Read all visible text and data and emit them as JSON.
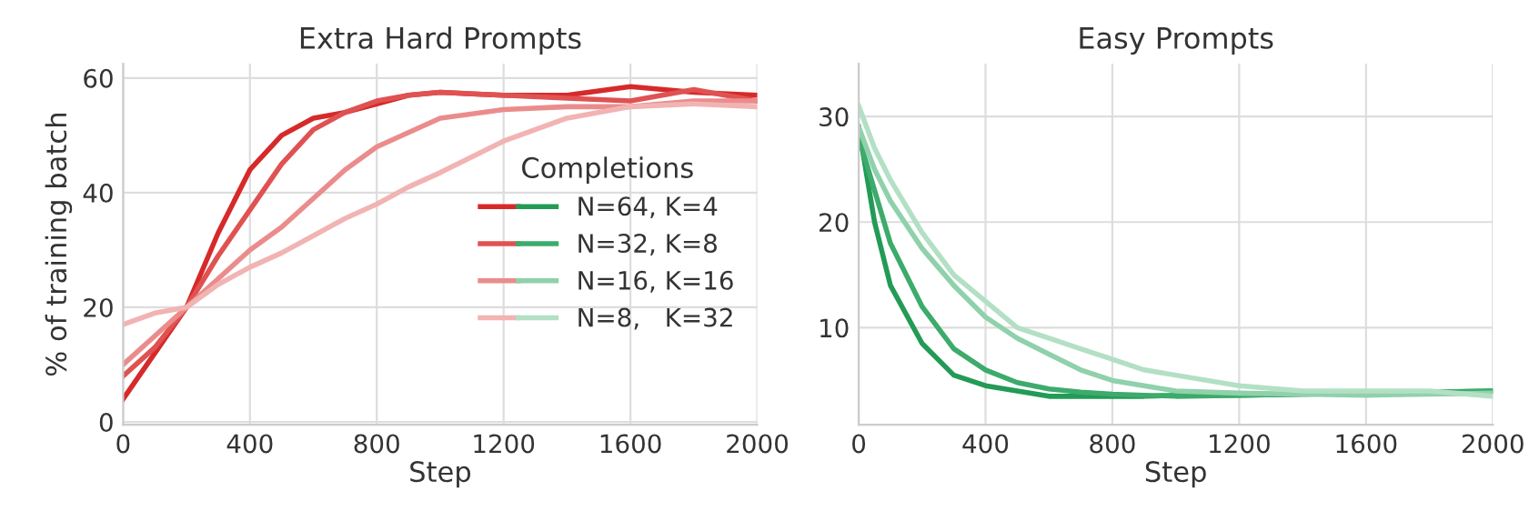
{
  "chart_data": [
    {
      "type": "line",
      "title": "Extra Hard Prompts",
      "xlabel": "Step",
      "ylabel": "% of training batch",
      "legend_title": "Completions",
      "legend": "right",
      "grid": true,
      "x": [
        0,
        100,
        200,
        300,
        400,
        500,
        600,
        700,
        800,
        900,
        1000,
        1200,
        1400,
        1600,
        1800,
        2000
      ],
      "xlim": [
        0,
        2000
      ],
      "xticks": [
        0,
        400,
        800,
        1200,
        1600,
        2000
      ],
      "ylim": [
        -0.5,
        62.5
      ],
      "yticks": [
        0,
        20,
        40,
        60
      ],
      "series": [
        {
          "name": "N=64, K=4",
          "color": "#d62a2a",
          "values": [
            4,
            12,
            20,
            33,
            44,
            50,
            53,
            54,
            55.5,
            57,
            57.5,
            57,
            57,
            58.5,
            57.5,
            57
          ]
        },
        {
          "name": "N=32, K=8",
          "color": "#e05252",
          "values": [
            8,
            13,
            20,
            29,
            37,
            45,
            51,
            54,
            56,
            57,
            57.5,
            57,
            56.5,
            56,
            58,
            56
          ]
        },
        {
          "name": "N=16, K=16",
          "color": "#eb8c8c",
          "values": [
            10,
            15,
            20,
            25,
            30,
            34,
            39,
            44,
            48,
            50.5,
            53,
            54.5,
            55,
            55,
            56,
            56
          ]
        },
        {
          "name": "N=8,   K=32",
          "color": "#f2b3b3",
          "values": [
            17,
            19,
            20,
            24,
            27,
            29.5,
            32.5,
            35.5,
            38,
            41,
            43.5,
            49,
            53,
            55,
            55.5,
            55
          ]
        }
      ]
    },
    {
      "type": "line",
      "title": "Easy Prompts",
      "xlabel": "Step",
      "grid": true,
      "x": [
        0,
        50,
        100,
        200,
        300,
        400,
        500,
        600,
        700,
        800,
        900,
        1000,
        1200,
        1400,
        1600,
        1800,
        2000
      ],
      "xlim": [
        0,
        2000
      ],
      "xticks": [
        0,
        400,
        800,
        1200,
        1600,
        2000
      ],
      "ylim": [
        0.8,
        35
      ],
      "yticks": [
        10,
        20,
        30
      ],
      "series": [
        {
          "color": "#239b56",
          "values": [
            29,
            20,
            14,
            8.5,
            5.5,
            4.5,
            4,
            3.5,
            3.5,
            3.5,
            3.5,
            3.6,
            3.6,
            3.7,
            3.8,
            3.9,
            4
          ]
        },
        {
          "color": "#3cab6b",
          "values": [
            28,
            23,
            18,
            12,
            8,
            6,
            4.8,
            4.2,
            3.9,
            3.7,
            3.6,
            3.5,
            3.6,
            3.7,
            3.8,
            3.9,
            4
          ]
        },
        {
          "color": "#8fd1ab",
          "values": [
            29,
            25,
            22,
            17.5,
            14,
            11,
            9,
            7.5,
            6,
            5,
            4.5,
            4,
            3.8,
            3.7,
            3.6,
            3.7,
            3.8
          ]
        },
        {
          "color": "#b3e0c4",
          "values": [
            31,
            27,
            24,
            19,
            15,
            12.5,
            10,
            9,
            8,
            7,
            6,
            5.5,
            4.5,
            4,
            4,
            4,
            3.5
          ]
        }
      ]
    }
  ]
}
